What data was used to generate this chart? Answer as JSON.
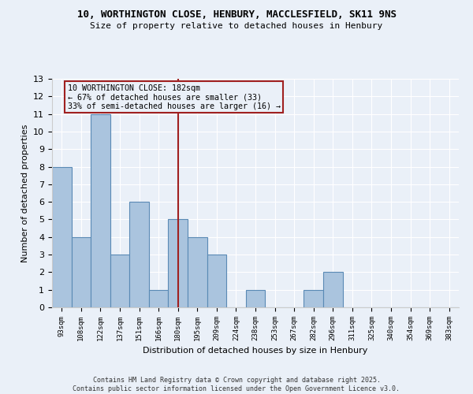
{
  "title_line1": "10, WORTHINGTON CLOSE, HENBURY, MACCLESFIELD, SK11 9NS",
  "title_line2": "Size of property relative to detached houses in Henbury",
  "xlabel": "Distribution of detached houses by size in Henbury",
  "ylabel": "Number of detached properties",
  "categories": [
    "93sqm",
    "108sqm",
    "122sqm",
    "137sqm",
    "151sqm",
    "166sqm",
    "180sqm",
    "195sqm",
    "209sqm",
    "224sqm",
    "238sqm",
    "253sqm",
    "267sqm",
    "282sqm",
    "296sqm",
    "311sqm",
    "325sqm",
    "340sqm",
    "354sqm",
    "369sqm",
    "383sqm"
  ],
  "values": [
    8,
    4,
    11,
    3,
    6,
    1,
    5,
    4,
    3,
    0,
    1,
    0,
    0,
    1,
    2,
    0,
    0,
    0,
    0,
    0,
    0
  ],
  "bar_color": "#aac4de",
  "bar_edge_color": "#5a8ab5",
  "reference_line_index": 6,
  "reference_line_color": "#a02020",
  "annotation_text": "10 WORTHINGTON CLOSE: 182sqm\n← 67% of detached houses are smaller (33)\n33% of semi-detached houses are larger (16) →",
  "annotation_box_color": "#a02020",
  "ylim": [
    0,
    13
  ],
  "yticks": [
    0,
    1,
    2,
    3,
    4,
    5,
    6,
    7,
    8,
    9,
    10,
    11,
    12,
    13
  ],
  "background_color": "#eaf0f8",
  "grid_color": "#ffffff",
  "footer_line1": "Contains HM Land Registry data © Crown copyright and database right 2025.",
  "footer_line2": "Contains public sector information licensed under the Open Government Licence v3.0."
}
